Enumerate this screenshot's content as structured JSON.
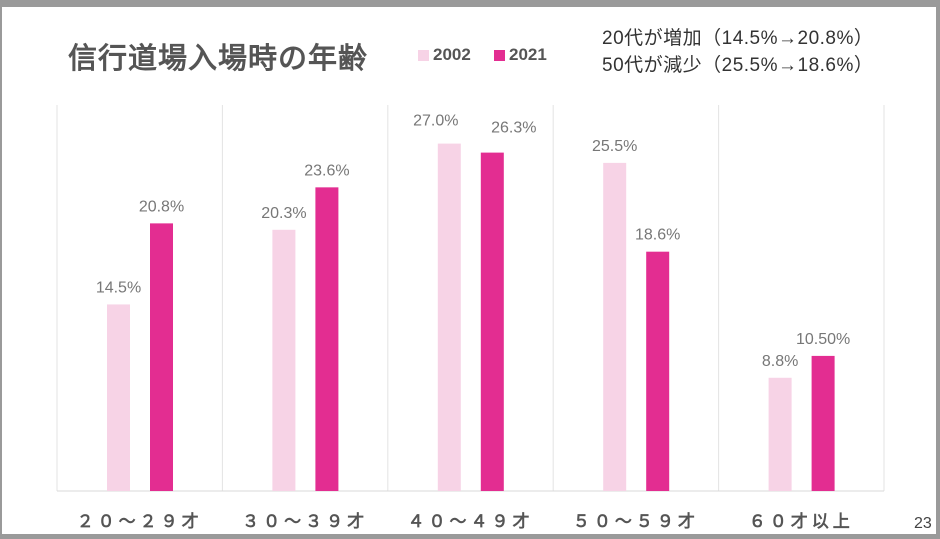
{
  "slide": {
    "page_number": "23"
  },
  "notes": [
    "20代が増加（14.5%→20.8%）",
    "50代が減少（25.5%→18.6%）"
  ],
  "chart_data": {
    "type": "bar",
    "title": "信行道場入場時の年齢",
    "categories": [
      "２０～２９才",
      "３０～３９才",
      "４０～４９才",
      "５０～５９才",
      "６０才以上"
    ],
    "series": [
      {
        "name": "2002",
        "color": "#f7d3e6",
        "values": [
          14.5,
          20.3,
          27.0,
          25.5,
          8.8
        ],
        "labels": [
          "14.5%",
          "20.3%",
          "27.0%",
          "25.5%",
          "8.8%"
        ]
      },
      {
        "name": "2021",
        "color": "#e32d91",
        "values": [
          20.8,
          23.6,
          26.3,
          18.6,
          10.5
        ],
        "labels": [
          "20.8%",
          "23.6%",
          "26.3%",
          "18.6%",
          "10.50%"
        ]
      }
    ],
    "ylim": [
      0,
      30
    ],
    "xlabel": "",
    "ylabel": "",
    "legend": "top",
    "grid": "vertical category separators"
  }
}
